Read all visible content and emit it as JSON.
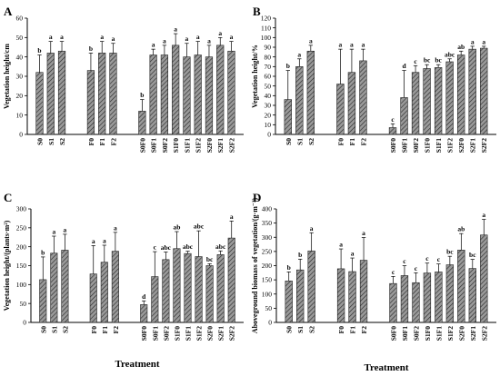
{
  "chart_data": [
    {
      "panel": "A",
      "type": "bar",
      "ylabel": "Vegetation  height/cm",
      "ylim": [
        0,
        60
      ],
      "yticks": [
        0,
        10,
        20,
        30,
        40,
        50,
        60
      ],
      "groups": [
        {
          "categories": [
            "S0",
            "S1",
            "S2"
          ],
          "values": [
            32,
            42,
            43
          ],
          "errors": [
            9,
            6,
            5
          ],
          "letters": [
            "b",
            "a",
            "a"
          ]
        },
        {
          "categories": [
            "F0",
            "F1",
            "F2"
          ],
          "values": [
            33,
            42,
            42
          ],
          "errors": [
            9,
            6,
            5
          ],
          "letters": [
            "b",
            "a",
            "a"
          ]
        },
        {
          "categories": [
            "S0F0",
            "S0F1",
            "S0F2",
            "S1F0",
            "S1F1",
            "S1F2",
            "S2F0",
            "S2F1",
            "S2F2"
          ],
          "values": [
            12,
            41,
            41,
            46,
            40,
            41,
            40,
            46,
            43
          ],
          "errors": [
            6,
            3,
            5,
            6,
            7,
            7,
            6,
            4,
            5
          ],
          "letters": [
            "b",
            "a",
            "a",
            "a",
            "a",
            "a",
            "a",
            "a",
            "a"
          ]
        }
      ],
      "xlabel": ""
    },
    {
      "panel": "B",
      "type": "bar",
      "ylabel": "Vegetation  height/%",
      "ylim": [
        0,
        120
      ],
      "yticks": [
        0,
        10,
        20,
        30,
        40,
        50,
        60,
        70,
        80,
        90,
        100,
        110,
        120
      ],
      "groups": [
        {
          "categories": [
            "S0",
            "S1",
            "S2"
          ],
          "values": [
            36,
            70,
            86
          ],
          "errors": [
            30,
            8,
            6
          ],
          "letters": [
            "b",
            "a",
            "a"
          ]
        },
        {
          "categories": [
            "F0",
            "F1",
            "F2"
          ],
          "values": [
            52,
            64,
            76
          ],
          "errors": [
            36,
            24,
            12
          ],
          "letters": [
            "a",
            "a",
            "a"
          ]
        },
        {
          "categories": [
            "S0F0",
            "S0F1",
            "S0F2",
            "S1F0",
            "S1F1",
            "S1F2",
            "S2F0",
            "S2F1",
            "S2F2"
          ],
          "values": [
            7,
            38,
            64,
            68,
            69,
            75,
            82,
            88,
            89
          ],
          "errors": [
            4,
            28,
            7,
            4,
            3,
            3,
            4,
            3,
            2
          ],
          "letters": [
            "c",
            "d",
            "c",
            "bc",
            "bc",
            "abc",
            "ab",
            "a",
            "a"
          ]
        }
      ],
      "xlabel": ""
    },
    {
      "panel": "C",
      "type": "bar",
      "ylabel": "Vegetation height/(plants·m²)",
      "ylim": [
        0,
        300
      ],
      "yticks": [
        0,
        50,
        100,
        150,
        200,
        250,
        300
      ],
      "groups": [
        {
          "categories": [
            "S0",
            "S1",
            "S2"
          ],
          "values": [
            113,
            183,
            191
          ],
          "errors": [
            60,
            45,
            42
          ],
          "letters": [
            "b",
            "a",
            "a"
          ]
        },
        {
          "categories": [
            "F0",
            "F1",
            "F2"
          ],
          "values": [
            128,
            159,
            188
          ],
          "errors": [
            75,
            45,
            50
          ],
          "letters": [
            "a",
            "a",
            "a"
          ]
        },
        {
          "categories": [
            "S0F0",
            "S0F1",
            "S0F2",
            "S1F0",
            "S1F1",
            "S1F2",
            "S2F0",
            "S2F1",
            "S2F2"
          ],
          "values": [
            47,
            121,
            166,
            195,
            182,
            174,
            150,
            179,
            223
          ],
          "errors": [
            10,
            66,
            20,
            45,
            6,
            68,
            5,
            10,
            45
          ],
          "letters": [
            "d",
            "c",
            "abc",
            "ab",
            "abc",
            "abc",
            "bc",
            "abc",
            "a"
          ]
        }
      ],
      "xlabel": "Treatment"
    },
    {
      "panel": "D",
      "type": "bar",
      "ylabel": "Aboveground biomass of vegetation/(g·m⁻²)",
      "ylim": [
        0,
        400
      ],
      "yticks": [
        0,
        50,
        100,
        150,
        200,
        250,
        300,
        350,
        400
      ],
      "groups": [
        {
          "categories": [
            "S0",
            "S1",
            "S2"
          ],
          "values": [
            146,
            185,
            252
          ],
          "errors": [
            32,
            38,
            64
          ],
          "letters": [
            "b",
            "b",
            "a"
          ]
        },
        {
          "categories": [
            "F0",
            "F1",
            "F2"
          ],
          "values": [
            189,
            179,
            219
          ],
          "errors": [
            70,
            48,
            80
          ],
          "letters": [
            "a",
            "a",
            "a"
          ]
        },
        {
          "categories": [
            "S0F0",
            "S0F1",
            "S0F2",
            "S1F0",
            "S1F1",
            "S1F2",
            "S2F0",
            "S2F1",
            "S2F2"
          ],
          "values": [
            137,
            165,
            140,
            174,
            178,
            203,
            255,
            190,
            308
          ],
          "errors": [
            25,
            35,
            35,
            35,
            28,
            30,
            58,
            32,
            55
          ],
          "letters": [
            "c",
            "c",
            "c",
            "c",
            "c",
            "bc",
            "ab",
            "bc",
            "a"
          ]
        }
      ],
      "xlabel": "Treatment"
    }
  ]
}
